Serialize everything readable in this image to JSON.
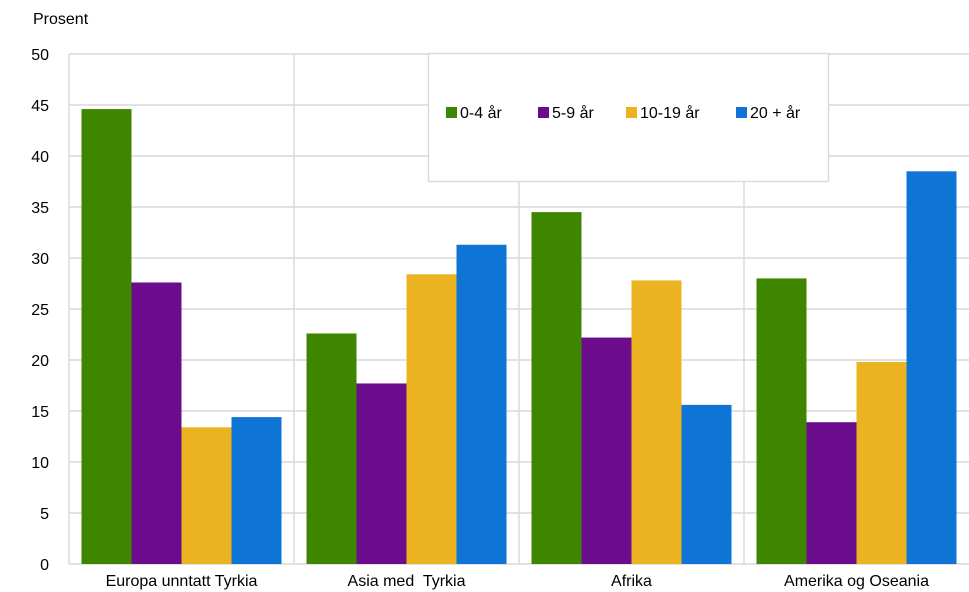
{
  "chart_data": {
    "type": "bar",
    "ylabel": "Prosent",
    "ylim": [
      0,
      50
    ],
    "yticks": [
      0,
      5,
      10,
      15,
      20,
      25,
      30,
      35,
      40,
      45,
      50
    ],
    "categories": [
      "Europa unntatt Tyrkia",
      "Asia med  Tyrkia",
      "Afrika",
      "Amerika og Oseania"
    ],
    "series": [
      {
        "name": "0-4 år",
        "color": "#3f8600",
        "values": [
          44.6,
          22.6,
          34.5,
          28.0
        ]
      },
      {
        "name": "5-9 år",
        "color": "#6a0c8c",
        "values": [
          27.6,
          17.7,
          22.2,
          13.9
        ]
      },
      {
        "name": "10-19 år",
        "color": "#ebb320",
        "values": [
          13.4,
          28.4,
          27.8,
          19.8
        ]
      },
      {
        "name": "20 + år",
        "color": "#0e74d6",
        "values": [
          14.4,
          31.3,
          15.6,
          38.5
        ]
      }
    ],
    "grid": true,
    "legend_position": "top-right"
  }
}
